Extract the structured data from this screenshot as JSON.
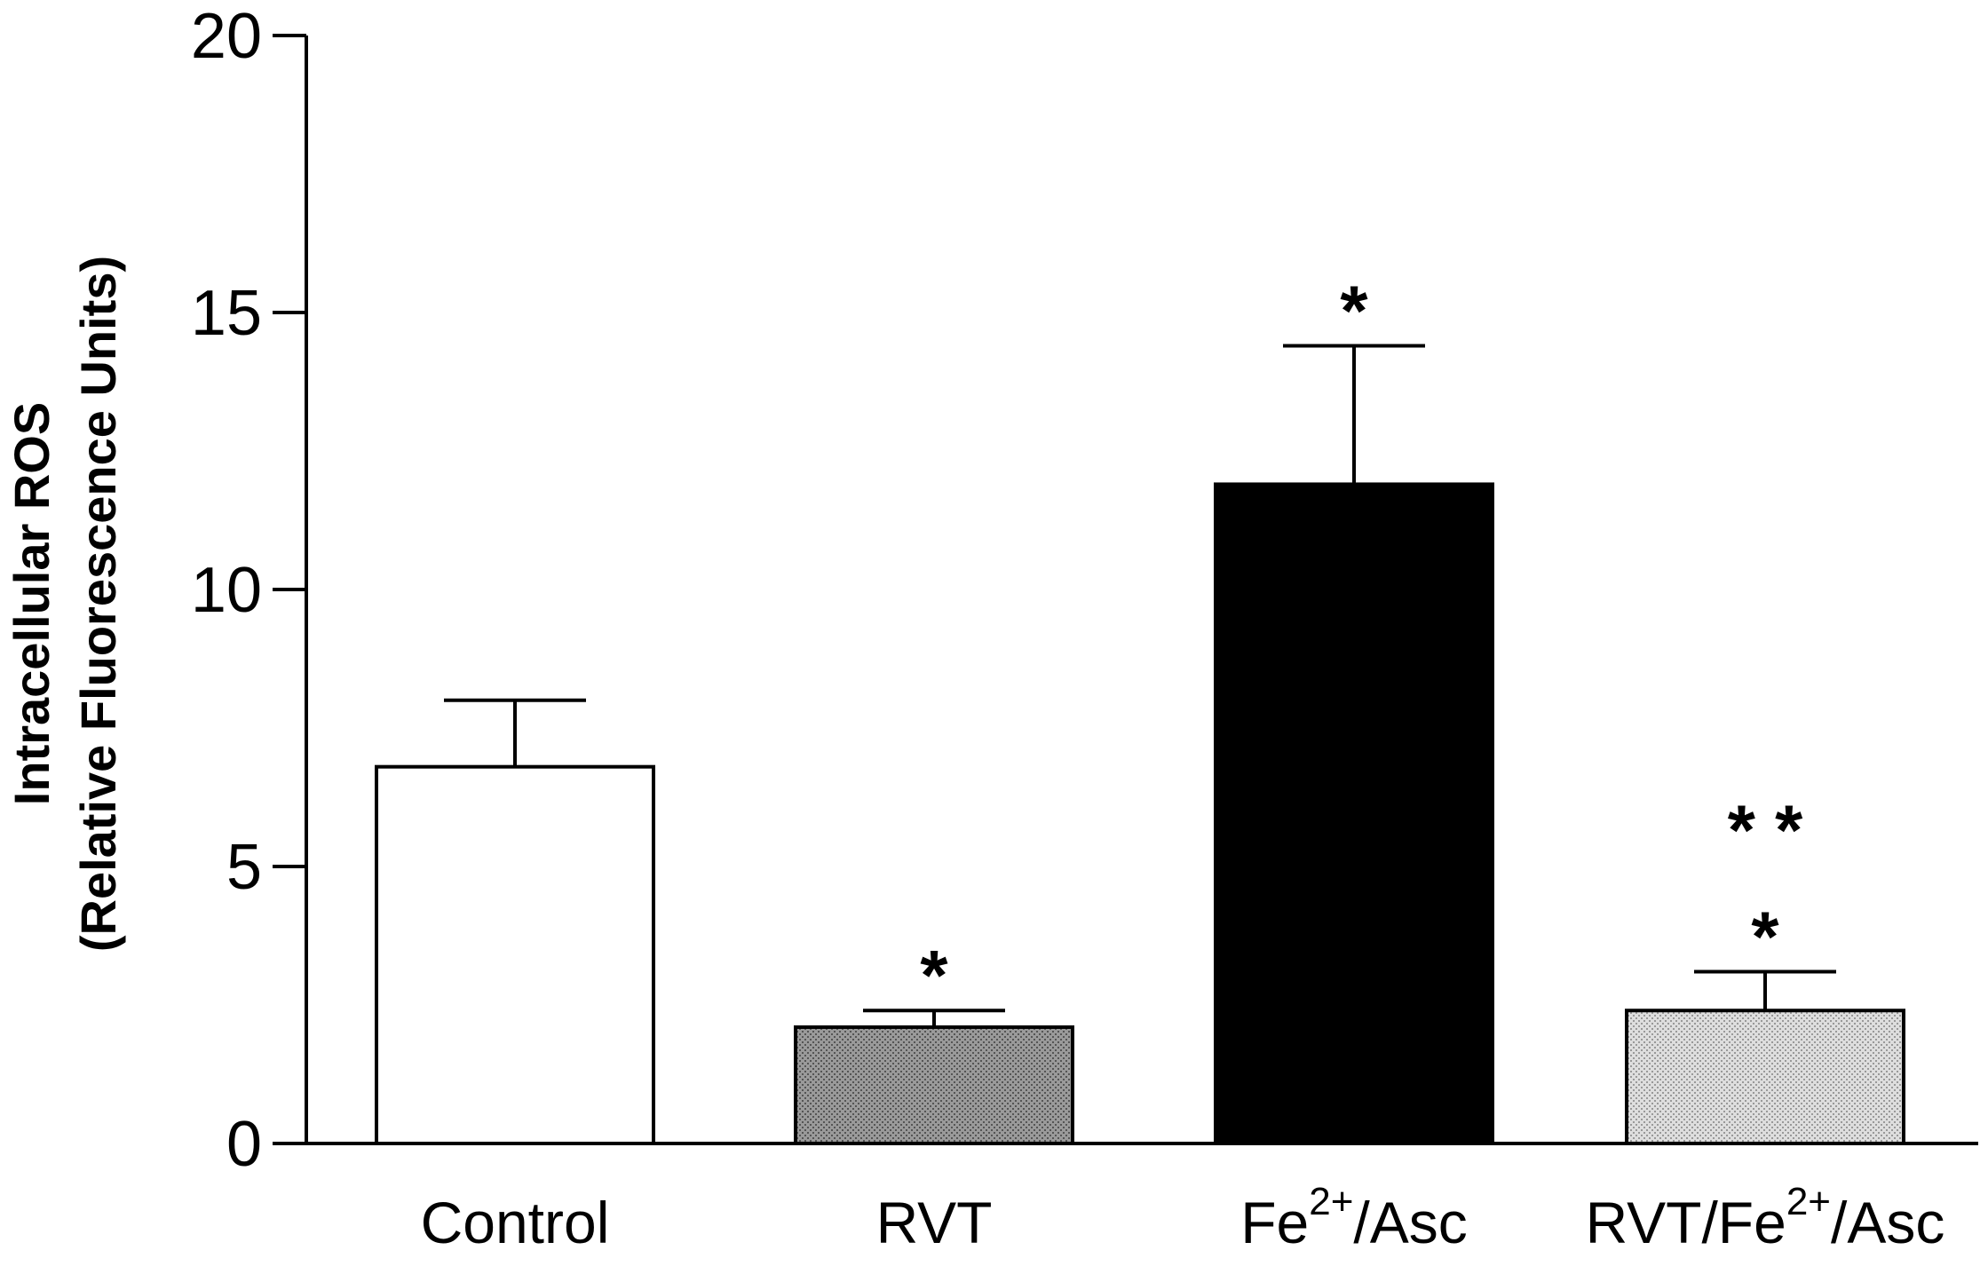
{
  "chart_data": {
    "type": "bar",
    "title": "",
    "xlabel": "",
    "ylabel": {
      "line1": "Intracellular ROS",
      "line2": "(Relative Fluorescence Units)"
    },
    "ylim": [
      0,
      20
    ],
    "yticks": [
      0,
      5,
      10,
      15,
      20
    ],
    "grid": false,
    "legend": "none",
    "categories": [
      {
        "base": "Control",
        "sup": "",
        "tail": ""
      },
      {
        "base": "RVT",
        "sup": "",
        "tail": ""
      },
      {
        "base": "Fe",
        "sup": "2+",
        "tail": "/Asc"
      },
      {
        "base": "RVT/Fe",
        "sup": "2+",
        "tail": "/Asc"
      }
    ],
    "values": [
      6.8,
      2.1,
      11.9,
      2.4
    ],
    "errors": [
      1.2,
      0.3,
      2.5,
      0.7
    ],
    "significance": [
      [],
      [
        "*"
      ],
      [
        "*"
      ],
      [
        "*",
        "* *"
      ]
    ],
    "bar_fills": [
      "#ffffff",
      "#8a8a8a",
      "#000000",
      "#d0d0d0"
    ],
    "bar_patterns": [
      "none",
      "stipple",
      "none",
      "stipple"
    ]
  }
}
